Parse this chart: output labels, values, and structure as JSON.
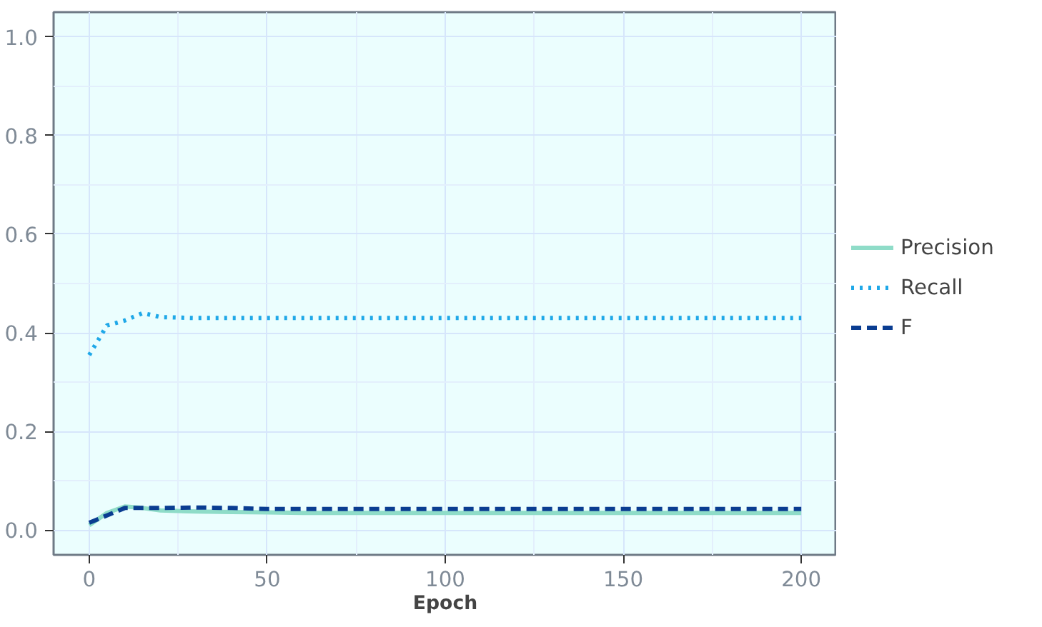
{
  "chart_data": {
    "type": "line",
    "xlabel": "Epoch",
    "x": [
      0,
      5,
      10,
      15,
      20,
      30,
      40,
      50,
      60,
      80,
      100,
      120,
      150,
      200
    ],
    "series": [
      {
        "name": "Precision",
        "color": "#8fdcc8",
        "line_style": "solid",
        "values": [
          0.01,
          0.035,
          0.048,
          0.045,
          0.04,
          0.038,
          0.037,
          0.036,
          0.035,
          0.035,
          0.035,
          0.035,
          0.035,
          0.035
        ]
      },
      {
        "name": "Recall",
        "color": "#1fa8e8",
        "line_style": "dotted",
        "values": [
          0.355,
          0.415,
          0.425,
          0.44,
          0.432,
          0.43,
          0.43,
          0.43,
          0.43,
          0.43,
          0.43,
          0.43,
          0.43,
          0.43
        ]
      },
      {
        "name": "F",
        "color": "#0a3d91",
        "line_style": "dashed",
        "values": [
          0.015,
          0.03,
          0.045,
          0.045,
          0.045,
          0.046,
          0.045,
          0.043,
          0.043,
          0.043,
          0.043,
          0.043,
          0.043,
          0.043
        ]
      }
    ],
    "xlim": [
      -10,
      210
    ],
    "ylim": [
      -0.05,
      1.05
    ],
    "xticks": [
      0,
      50,
      100,
      150,
      200
    ],
    "yticks": [
      {
        "value": 0,
        "label": "0.0"
      },
      {
        "value": 0.2,
        "label": "0.2"
      },
      {
        "value": 0.4,
        "label": "0.4"
      },
      {
        "value": 0.6,
        "label": "0.6"
      },
      {
        "value": 0.8,
        "label": "0.8"
      },
      {
        "value": 1.0,
        "label": "1.0"
      }
    ],
    "grid": true,
    "legend": "right"
  }
}
